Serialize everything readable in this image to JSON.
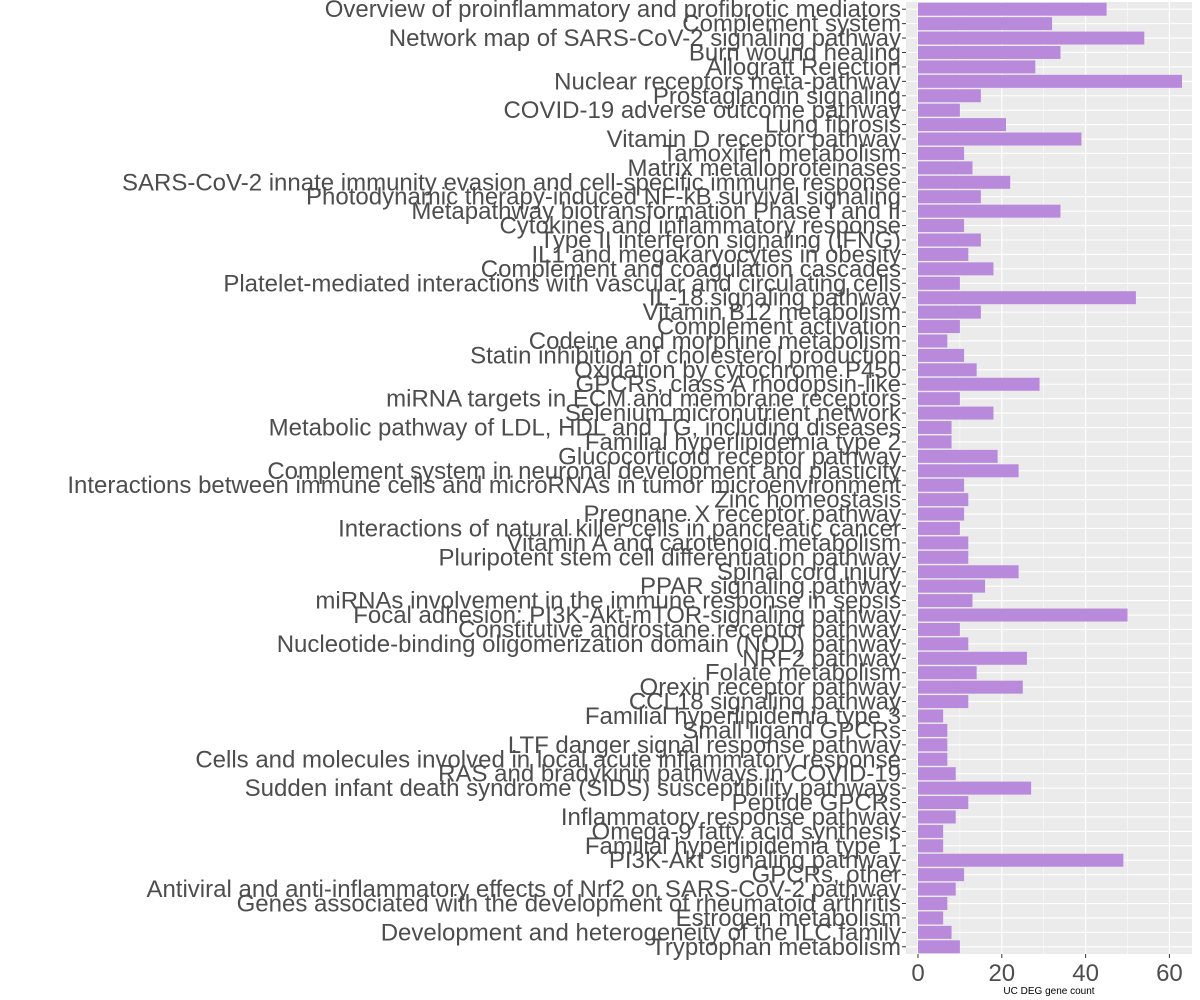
{
  "chart_data": {
    "type": "bar",
    "orientation": "horizontal",
    "xlabel": "UC DEG gene count",
    "xlim": [
      0,
      63
    ],
    "xticks": [
      0,
      20,
      40,
      60
    ],
    "xtick_labels": [
      "0",
      "20",
      "40",
      "60"
    ],
    "grid": true,
    "legend": "none",
    "bar_color": "#b989dc",
    "panel_background": "#ebebeb",
    "grid_color": "#ffffff",
    "categories": [
      "Overview of proinflammatory and profibrotic mediators",
      "Complement system",
      "Network map of SARS-CoV-2 signaling pathway",
      "Burn wound healing",
      "Allograft Rejection",
      "Nuclear receptors meta-pathway",
      "Prostaglandin signaling",
      "COVID-19 adverse outcome pathway",
      "Lung fibrosis",
      "Vitamin D receptor pathway",
      "Tamoxifen metabolism",
      "Matrix metalloproteinases",
      "SARS-CoV-2 innate immunity evasion and cell-specific immune response",
      "Photodynamic therapy-induced NF-kB survival signaling",
      "Metapathway biotransformation Phase I and II",
      "Cytokines and inflammatory response",
      "Type II interferon signaling (IFNG)",
      "IL1 and megakaryocytes in obesity",
      "Complement and coagulation cascades",
      "Platelet-mediated interactions with vascular and circulating cells",
      "IL-18 signaling pathway",
      "Vitamin B12 metabolism",
      "Complement activation",
      "Codeine and morphine metabolism",
      "Statin inhibition of cholesterol production",
      "Oxidation by cytochrome P450",
      "GPCRs, class A rhodopsin-like",
      "miRNA targets in ECM and membrane receptors",
      "Selenium micronutrient network",
      "Metabolic pathway of LDL, HDL and TG, including diseases",
      "Familial hyperlipidemia type 2",
      "Glucocorticoid receptor pathway",
      "Complement system in neuronal development and plasticity",
      "Interactions between immune cells and microRNAs in tumor microenvironment",
      "Zinc homeostasis",
      "Pregnane X receptor pathway",
      "Interactions of natural killer cells in pancreatic cancer",
      "Vitamin A and carotenoid metabolism",
      "Pluripotent stem cell differentiation pathway",
      "Spinal cord injury",
      "PPAR signaling pathway",
      "miRNAs involvement in the immune response in sepsis",
      "Focal adhesion: PI3K-Akt-mTOR-signaling pathway",
      "Constitutive androstane receptor pathway",
      "Nucleotide-binding oligomerization domain (NOD) pathway",
      "NRF2 pathway",
      "Folate metabolism",
      "Orexin receptor pathway",
      "CCL18 signaling pathway",
      "Familial hyperlipidemia type 3",
      "Small ligand GPCRs",
      "LTF danger signal response pathway",
      "Cells and molecules involved in local acute inflammatory response",
      "RAS and bradykinin pathways in COVID-19",
      "Sudden infant death syndrome (SIDS) susceptibility pathways",
      "Peptide GPCRs",
      "Inflammatory response pathway",
      "Omega-9 fatty acid synthesis",
      "Familial hyperlipidemia type 1",
      "PI3K-Akt signaling pathway",
      "GPCRs, other",
      "Antiviral and anti-inflammatory effects of Nrf2 on SARS-CoV-2 pathway",
      "Genes associated with the development of rheumatoid arthritis",
      "Estrogen metabolism",
      "Development and heterogeneity of the ILC family",
      "Tryptophan metabolism"
    ],
    "values": [
      45,
      32,
      54,
      34,
      28,
      63,
      15,
      10,
      21,
      39,
      11,
      13,
      22,
      15,
      34,
      11,
      15,
      12,
      18,
      10,
      52,
      15,
      10,
      7,
      11,
      14,
      29,
      10,
      18,
      8,
      8,
      19,
      24,
      11,
      12,
      11,
      10,
      12,
      12,
      24,
      16,
      13,
      50,
      10,
      12,
      26,
      14,
      25,
      12,
      6,
      7,
      7,
      7,
      9,
      27,
      12,
      9,
      6,
      6,
      49,
      11,
      9,
      7,
      6,
      8,
      10
    ]
  }
}
